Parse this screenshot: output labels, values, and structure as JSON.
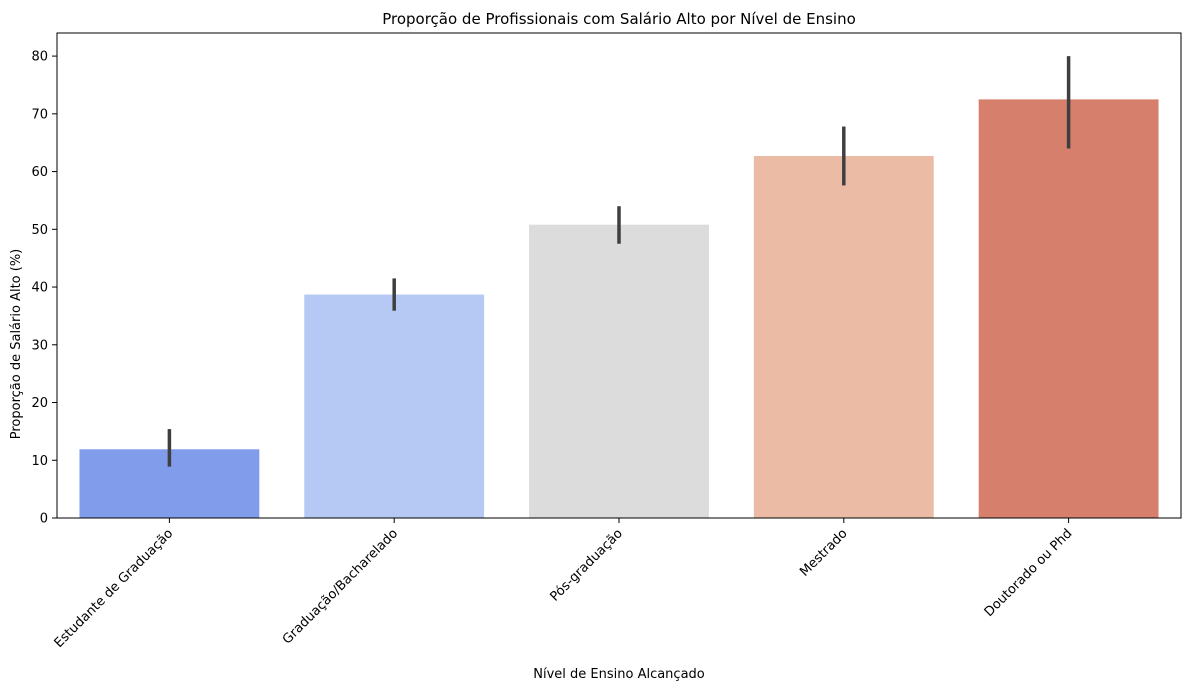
{
  "chart_data": {
    "type": "bar",
    "title": "Proporção de Profissionais com Salário Alto por Nível de Ensino",
    "xlabel": "Nível de Ensino Alcançado",
    "ylabel": "Proporção de Salário Alto (%)",
    "ylim": [
      0,
      84
    ],
    "yticks": [
      0,
      10,
      20,
      30,
      40,
      50,
      60,
      70,
      80
    ],
    "grid": false,
    "legend": "none",
    "categories": [
      "Estudante de Graduação",
      "Graduação/Bacharelado",
      "Pós-graduação",
      "Mestrado",
      "Doutorado ou Phd"
    ],
    "values": [
      11.9,
      38.7,
      50.8,
      62.7,
      72.5
    ],
    "error_low": [
      8.9,
      35.9,
      47.5,
      57.6,
      64.0
    ],
    "error_high": [
      15.4,
      41.5,
      54.0,
      67.8,
      80.0
    ],
    "colors": [
      "#819cea",
      "#b5c9f4",
      "#dcdcdc",
      "#ebbba5",
      "#d57f6c"
    ],
    "error_color": "#3f3f3f"
  }
}
